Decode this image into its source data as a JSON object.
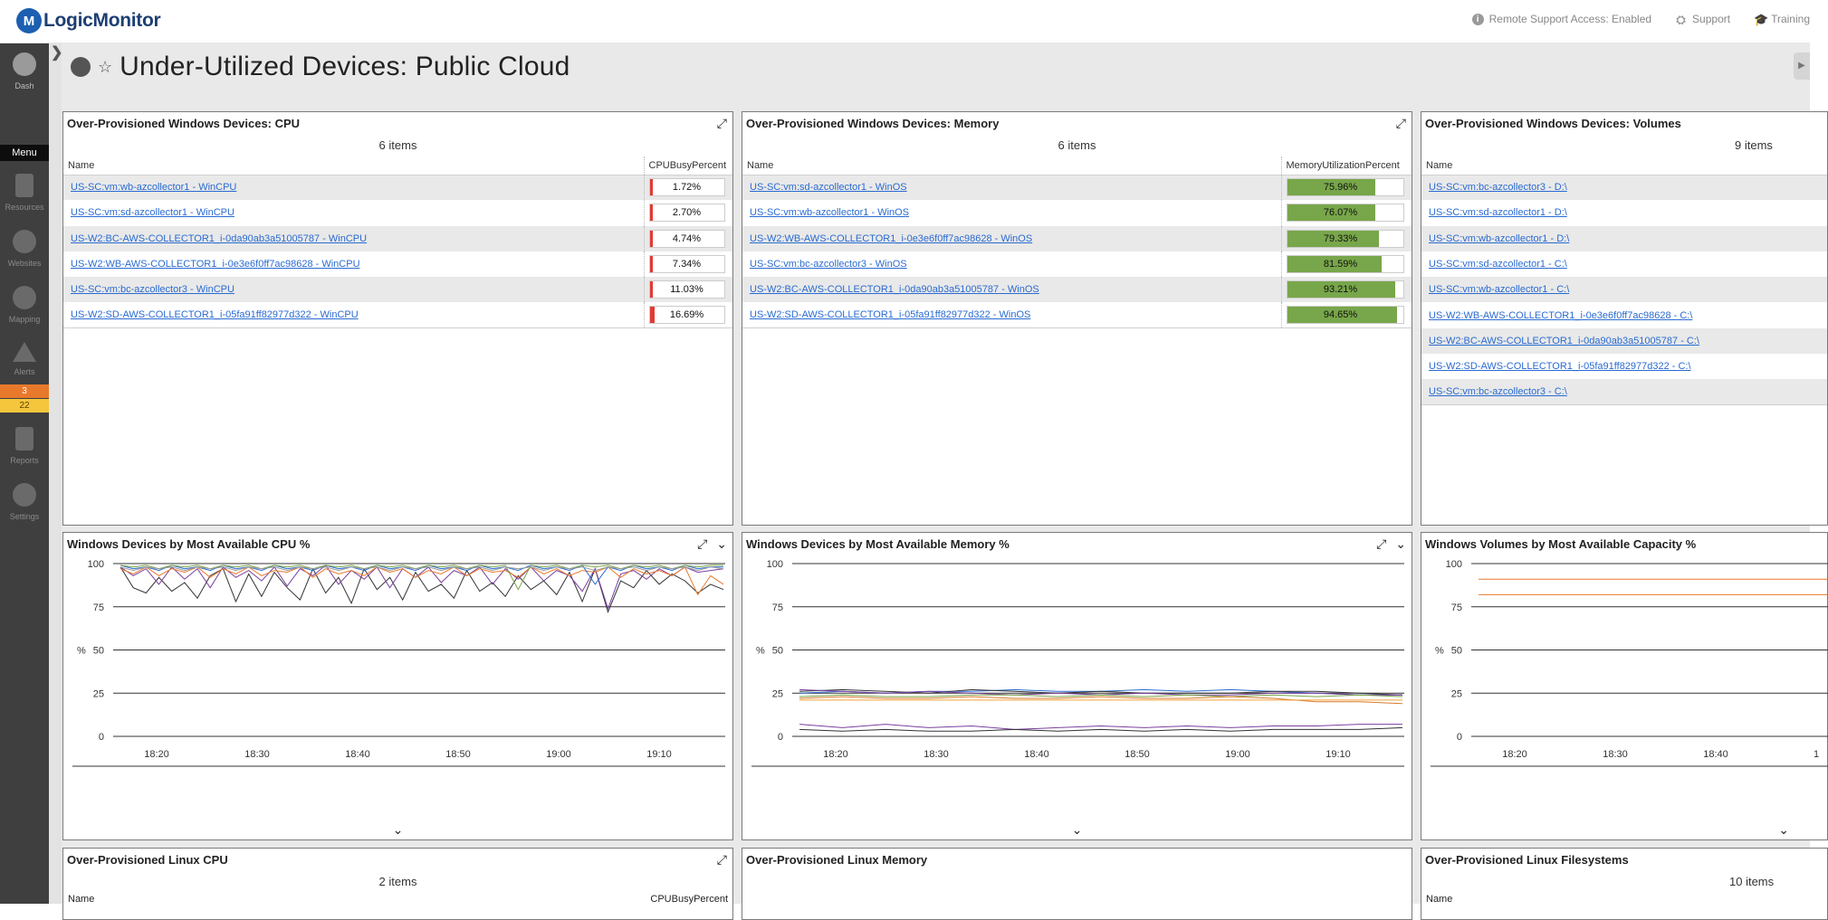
{
  "app": {
    "name": "LogicMonitor",
    "logo_letter": "M"
  },
  "top_links": [
    {
      "icon": "info-icon",
      "label": "Remote Support Access: Enabled"
    },
    {
      "icon": "support-icon",
      "label": "Support"
    },
    {
      "icon": "training-icon",
      "label": "Training"
    }
  ],
  "sidebar": {
    "dash_label": "Dash",
    "menu_label": "Menu",
    "items": [
      {
        "icon": "resources-icon",
        "label": "Resources"
      },
      {
        "icon": "websites-icon",
        "label": "Websites"
      },
      {
        "icon": "mapping-icon",
        "label": "Mapping"
      },
      {
        "icon": "alerts-icon",
        "label": "Alerts"
      },
      {
        "icon": "reports-icon",
        "label": "Reports"
      },
      {
        "icon": "settings-icon",
        "label": "Settings"
      }
    ],
    "alert_counts": {
      "error": "3",
      "warning": "22"
    }
  },
  "collapse_glyph": "❯",
  "right_tab_glyph": "▶",
  "dashboard": {
    "title": "Under-Utilized Devices: Public Cloud",
    "star": "☆"
  },
  "icons": {
    "expand": "⤢",
    "chevron": "⌄"
  },
  "colors": {
    "cpu_fill": "#e23a33",
    "memory_fill": "#78a64a",
    "link": "#2a6bd1",
    "alert_error": "#e8792b",
    "alert_warning": "#f5c63c"
  },
  "widgets": {
    "cpu": {
      "title": "Over-Provisioned Windows Devices: CPU",
      "count": "6 items",
      "col_name": "Name",
      "col_value": "CPUBusyPercent",
      "rows": [
        {
          "name": "US-SC:vm:wb-azcollector1 - WinCPU",
          "value": "1.72%",
          "pct": 1.72
        },
        {
          "name": "US-SC:vm:sd-azcollector1 - WinCPU",
          "value": "2.70%",
          "pct": 2.7
        },
        {
          "name": "US-W2:BC-AWS-COLLECTOR1_i-0da90ab3a51005787 - WinCPU",
          "value": "4.74%",
          "pct": 4.74
        },
        {
          "name": "US-W2:WB-AWS-COLLECTOR1_i-0e3e6f0ff7ac98628 - WinCPU",
          "value": "7.34%",
          "pct": 7.34
        },
        {
          "name": "US-SC:vm:bc-azcollector3 - WinCPU",
          "value": "11.03%",
          "pct": 11.03
        },
        {
          "name": "US-W2:SD-AWS-COLLECTOR1_i-05fa91ff82977d322 - WinCPU",
          "value": "16.69%",
          "pct": 16.69
        }
      ]
    },
    "memory": {
      "title": "Over-Provisioned Windows Devices: Memory",
      "count": "6 items",
      "col_name": "Name",
      "col_value": "MemoryUtilizationPercent",
      "rows": [
        {
          "name": "US-SC:vm:sd-azcollector1 - WinOS",
          "value": "75.96%",
          "pct": 75.96
        },
        {
          "name": "US-SC:vm:wb-azcollector1 - WinOS",
          "value": "76.07%",
          "pct": 76.07
        },
        {
          "name": "US-W2:WB-AWS-COLLECTOR1_i-0e3e6f0ff7ac98628 - WinOS",
          "value": "79.33%",
          "pct": 79.33
        },
        {
          "name": "US-SC:vm:bc-azcollector3 - WinOS",
          "value": "81.59%",
          "pct": 81.59
        },
        {
          "name": "US-W2:BC-AWS-COLLECTOR1_i-0da90ab3a51005787 - WinOS",
          "value": "93.21%",
          "pct": 93.21
        },
        {
          "name": "US-W2:SD-AWS-COLLECTOR1_i-05fa91ff82977d322 - WinOS",
          "value": "94.65%",
          "pct": 94.65
        }
      ]
    },
    "volumes": {
      "title": "Over-Provisioned Windows Devices: Volumes",
      "count": "9 items",
      "col_name": "Name",
      "rows": [
        {
          "name": "US-SC:vm:bc-azcollector3 - D:\\"
        },
        {
          "name": "US-SC:vm:sd-azcollector1 - D:\\"
        },
        {
          "name": "US-SC:vm:wb-azcollector1 - D:\\"
        },
        {
          "name": "US-SC:vm:sd-azcollector1 - C:\\"
        },
        {
          "name": "US-SC:vm:wb-azcollector1 - C:\\"
        },
        {
          "name": "US-W2:WB-AWS-COLLECTOR1_i-0e3e6f0ff7ac98628 - C:\\"
        },
        {
          "name": "US-W2:BC-AWS-COLLECTOR1_i-0da90ab3a51005787 - C:\\"
        },
        {
          "name": "US-W2:SD-AWS-COLLECTOR1_i-05fa91ff82977d322 - C:\\"
        },
        {
          "name": "US-SC:vm:bc-azcollector3 - C:\\"
        }
      ]
    },
    "linux_cpu": {
      "title": "Over-Provisioned Linux CPU",
      "count": "2 items",
      "col_name": "Name",
      "col_value": "CPUBusyPercent"
    },
    "linux_memory": {
      "title": "Over-Provisioned Linux Memory"
    },
    "linux_fs": {
      "title": "Over-Provisioned Linux Filesystems",
      "count": "10 items",
      "col_name": "Name"
    }
  },
  "chart_data": [
    {
      "type": "line",
      "title": "Windows Devices by Most Available CPU %",
      "ylabel": "%",
      "ylim": [
        0,
        100
      ],
      "yticks": [
        0,
        25,
        50,
        75,
        100
      ],
      "xticks": [
        "18:20",
        "18:30",
        "18:40",
        "18:50",
        "19:00",
        "19:10"
      ],
      "x_range": [
        "18:15",
        "19:18"
      ],
      "series": [
        {
          "color": "#333333",
          "values": [
            98,
            86,
            83,
            92,
            84,
            89,
            80,
            93,
            97,
            78,
            94,
            81,
            95,
            86,
            79,
            97,
            83,
            92,
            77,
            97,
            85,
            92,
            79,
            95,
            84,
            88,
            80,
            96,
            84,
            89,
            81,
            93,
            85,
            90,
            82,
            95,
            78,
            97,
            72,
            90,
            86,
            96,
            88,
            94,
            90,
            83,
            88,
            85
          ]
        },
        {
          "color": "#7b3fa0",
          "values": [
            98,
            93,
            97,
            88,
            98,
            91,
            97,
            86,
            98,
            92,
            96,
            90,
            98,
            87,
            97,
            93,
            99,
            88,
            96,
            91,
            98,
            86,
            97,
            92,
            98,
            89,
            96,
            93,
            98,
            88,
            97,
            91,
            98,
            90,
            96,
            93,
            84,
            97,
            74,
            94,
            96,
            91,
            97,
            93,
            98,
            95,
            96,
            97
          ]
        },
        {
          "color": "#e8792b",
          "values": [
            97,
            94,
            98,
            93,
            97,
            95,
            98,
            92,
            97,
            94,
            98,
            93,
            96,
            95,
            98,
            92,
            97,
            94,
            96,
            93,
            98,
            95,
            97,
            92,
            96,
            94,
            98,
            93,
            97,
            95,
            96,
            92,
            98,
            94,
            97,
            93,
            96,
            95,
            98,
            92,
            97,
            94,
            96,
            93,
            98,
            82,
            93,
            88
          ]
        },
        {
          "color": "#2a6bd1",
          "values": [
            99,
            97,
            98,
            96,
            99,
            97,
            98,
            96,
            99,
            97,
            98,
            96,
            99,
            97,
            98,
            96,
            99,
            97,
            98,
            96,
            99,
            97,
            98,
            96,
            99,
            97,
            98,
            96,
            99,
            97,
            98,
            96,
            99,
            97,
            98,
            96,
            99,
            88,
            98,
            96,
            99,
            97,
            98,
            96,
            99,
            97,
            98,
            98
          ]
        },
        {
          "color": "#78a64a",
          "values": [
            99,
            98,
            99,
            97,
            99,
            98,
            99,
            97,
            99,
            98,
            99,
            97,
            99,
            98,
            99,
            97,
            99,
            98,
            99,
            97,
            99,
            98,
            99,
            97,
            99,
            98,
            99,
            97,
            99,
            98,
            99,
            85,
            99,
            98,
            99,
            97,
            99,
            98,
            99,
            97,
            99,
            98,
            99,
            97,
            99,
            98,
            99,
            99
          ]
        },
        {
          "color": "#999999",
          "values": [
            98,
            96,
            98,
            97,
            98,
            96,
            98,
            97,
            98,
            96,
            98,
            97,
            98,
            96,
            98,
            97,
            98,
            96,
            98,
            97,
            98,
            96,
            98,
            97,
            98,
            96,
            98,
            97,
            98,
            96,
            98,
            97,
            98,
            96,
            98,
            97,
            98,
            96,
            98,
            97,
            98,
            96,
            98,
            97,
            98,
            96,
            98,
            97
          ]
        }
      ]
    },
    {
      "type": "line",
      "title": "Windows Devices by Most Available Memory %",
      "ylabel": "%",
      "ylim": [
        0,
        100
      ],
      "yticks": [
        0,
        25,
        50,
        75,
        100
      ],
      "xticks": [
        "18:20",
        "18:30",
        "18:40",
        "18:50",
        "19:00",
        "19:10"
      ],
      "x_range": [
        "18:15",
        "19:18"
      ],
      "series": [
        {
          "color": "#2a6bd1",
          "values": [
            25,
            26,
            25,
            26,
            26,
            27,
            26,
            26,
            27,
            26,
            27,
            26,
            25,
            24,
            24
          ]
        },
        {
          "color": "#333333",
          "values": [
            26,
            27,
            26,
            25,
            27,
            26,
            25,
            26,
            25,
            25,
            25,
            26,
            26,
            25,
            24
          ]
        },
        {
          "color": "#7b3fa0",
          "values": [
            27,
            26,
            25,
            26,
            25,
            24,
            25,
            24,
            25,
            24,
            24,
            25,
            25,
            24,
            24
          ]
        },
        {
          "color": "#78a64a",
          "values": [
            23,
            24,
            23,
            23,
            24,
            24,
            23,
            24,
            23,
            24,
            23,
            24,
            23,
            24,
            23
          ]
        },
        {
          "color": "#d97b2c",
          "values": [
            22,
            23,
            22,
            22,
            23,
            22,
            22,
            23,
            22,
            22,
            23,
            22,
            20,
            20,
            19
          ]
        },
        {
          "color": "#f2a03b",
          "values": [
            21,
            21,
            21,
            21,
            21,
            21,
            21,
            21,
            21,
            21,
            21,
            21,
            21,
            21,
            21
          ]
        },
        {
          "color": "#7b3fa0",
          "values": [
            7,
            5,
            7,
            5,
            6,
            4,
            5,
            6,
            5,
            6,
            5,
            6,
            6,
            7,
            7
          ]
        },
        {
          "color": "#333333",
          "values": [
            4,
            3,
            4,
            3,
            3,
            4,
            3,
            4,
            3,
            4,
            3,
            4,
            4,
            4,
            5
          ]
        }
      ]
    },
    {
      "type": "line",
      "title": "Windows Volumes by Most Available Capacity %",
      "ylabel": "%",
      "ylim": [
        0,
        100
      ],
      "yticks": [
        0,
        25,
        50,
        75,
        100
      ],
      "xticks": [
        "18:20",
        "18:30",
        "18:40",
        "1"
      ],
      "series": [
        {
          "color": "#e8792b",
          "values": [
            91,
            91,
            91,
            91,
            91,
            91,
            91,
            91
          ]
        },
        {
          "color": "#e8792b",
          "values": [
            82,
            82,
            82,
            82,
            82,
            82,
            82,
            82
          ]
        }
      ]
    }
  ]
}
